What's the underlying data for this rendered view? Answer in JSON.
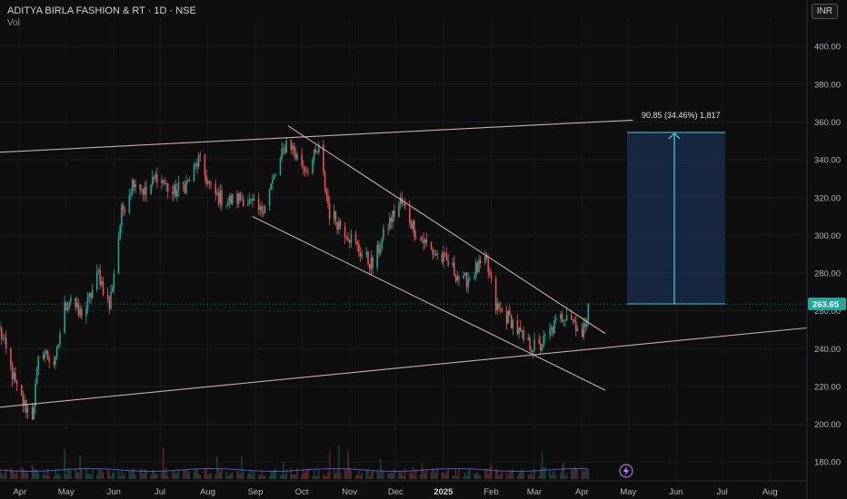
{
  "header": {
    "symbol_line": "ADITYA BIRLA FASHION & RT · 1D · NSE",
    "vol_label": "Vol",
    "currency_button": "INR"
  },
  "colors": {
    "background": "#0e0e0e",
    "up": "#26a69a",
    "down": "#ef5350",
    "trendline": "#e8c9c9",
    "target_box": "#1e3a66",
    "target_line": "#4fd1e6",
    "volume_ma": "#5b6bff"
  },
  "chart_data": {
    "type": "candlestick",
    "title": "ADITYA BIRLA FASHION & RT · 1D · NSE",
    "ylim": [
      170,
      415
    ],
    "y_ticks": [
      180,
      200,
      220,
      240,
      260,
      280,
      300,
      320,
      340,
      360,
      380,
      400
    ],
    "x_tick_labels": [
      "Apr",
      "May",
      "Jun",
      "Jul",
      "Aug",
      "Sep",
      "Oct",
      "Nov",
      "Dec",
      "2025",
      "Feb",
      "Mar",
      "Apr",
      "May",
      "Jun",
      "Jul",
      "Aug"
    ],
    "last_price": "263.65",
    "measure_label": "90.85 (34.46%) 1,817",
    "measure_from": 263.65,
    "measure_to": 354.5,
    "price_path": [
      [
        "2024-03-25",
        250
      ],
      [
        "2024-04-05",
        218
      ],
      [
        "2024-04-10",
        210
      ],
      [
        "2024-04-15",
        205
      ],
      [
        "2024-04-20",
        240
      ],
      [
        "2024-04-30",
        232
      ],
      [
        "2024-05-05",
        260
      ],
      [
        "2024-05-10",
        268
      ],
      [
        "2024-05-15",
        258
      ],
      [
        "2024-05-20",
        262
      ],
      [
        "2024-05-28",
        280
      ],
      [
        "2024-06-04",
        262
      ],
      [
        "2024-06-12",
        312
      ],
      [
        "2024-06-20",
        330
      ],
      [
        "2024-06-28",
        322
      ],
      [
        "2024-07-05",
        332
      ],
      [
        "2024-07-15",
        322
      ],
      [
        "2024-07-25",
        328
      ],
      [
        "2024-08-01",
        340
      ],
      [
        "2024-08-10",
        322
      ],
      [
        "2024-08-20",
        318
      ],
      [
        "2024-08-30",
        320
      ],
      [
        "2024-09-10",
        312
      ],
      [
        "2024-09-20",
        332
      ],
      [
        "2024-09-28",
        352
      ],
      [
        "2024-10-03",
        342
      ],
      [
        "2024-10-10",
        335
      ],
      [
        "2024-10-18",
        345
      ],
      [
        "2024-10-25",
        312
      ],
      [
        "2024-11-05",
        302
      ],
      [
        "2024-11-15",
        290
      ],
      [
        "2024-11-22",
        284
      ],
      [
        "2024-12-01",
        304
      ],
      [
        "2024-12-10",
        318
      ],
      [
        "2024-12-20",
        302
      ],
      [
        "2024-12-30",
        292
      ],
      [
        "2025-01-10",
        285
      ],
      [
        "2025-01-20",
        275
      ],
      [
        "2025-01-28",
        282
      ],
      [
        "2025-02-04",
        285
      ],
      [
        "2025-02-10",
        262
      ],
      [
        "2025-02-20",
        255
      ],
      [
        "2025-03-01",
        243
      ],
      [
        "2025-03-10",
        240
      ],
      [
        "2025-03-20",
        252
      ],
      [
        "2025-03-28",
        260
      ],
      [
        "2025-04-04",
        252
      ],
      [
        "2025-04-07",
        245
      ],
      [
        "2025-04-11",
        263.65
      ]
    ],
    "trendlines": [
      {
        "from": [
          "2024-03-25",
          344
        ],
        "to": [
          "2025-05-10",
          361
        ]
      },
      {
        "from": [
          "2024-03-25",
          209
        ],
        "to": [
          "2025-08-31",
          251
        ]
      },
      {
        "from": [
          "2024-09-28",
          358
        ],
        "to": [
          "2025-04-22",
          248
        ]
      },
      {
        "from": [
          "2024-09-05",
          310
        ],
        "to": [
          "2025-04-22",
          218
        ]
      }
    ],
    "time_range": [
      "2024-03-25",
      "2025-08-31"
    ],
    "grid": true,
    "volume_series": true
  }
}
